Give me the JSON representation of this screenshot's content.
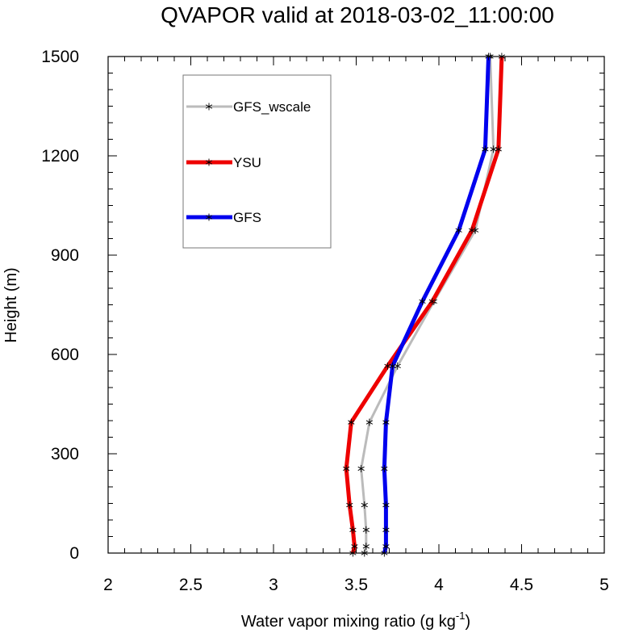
{
  "chart_data": {
    "type": "line",
    "title": "QVAPOR valid at 2018-03-02_11:00:00",
    "xlabel": "Water vapor mixing ratio (g kg",
    "xlabel_exponent": "-1",
    "xlabel_suffix": ")",
    "ylabel": "Height (m)",
    "xlim": [
      2,
      5
    ],
    "ylim": [
      0,
      1500
    ],
    "xticks": [
      "2",
      "2.5",
      "3",
      "3.5",
      "4",
      "4.5",
      "5"
    ],
    "yticks": [
      "0",
      "300",
      "600",
      "900",
      "1200",
      "1500"
    ],
    "grid": false,
    "legend_position": "top-left inside",
    "series": [
      {
        "name": "GFS_wscale",
        "color": "#bbbbbb",
        "marker": "asterisk",
        "points": [
          [
            3.55,
            0
          ],
          [
            3.56,
            20
          ],
          [
            3.56,
            70
          ],
          [
            3.55,
            145
          ],
          [
            3.53,
            255
          ],
          [
            3.58,
            395
          ],
          [
            3.75,
            565
          ],
          [
            3.97,
            760
          ],
          [
            4.22,
            975
          ],
          [
            4.33,
            1220
          ],
          [
            4.31,
            1500
          ]
        ]
      },
      {
        "name": "YSU",
        "color": "#ee0000",
        "marker": "asterisk",
        "points": [
          [
            3.48,
            0
          ],
          [
            3.49,
            20
          ],
          [
            3.48,
            70
          ],
          [
            3.46,
            145
          ],
          [
            3.44,
            255
          ],
          [
            3.47,
            395
          ],
          [
            3.69,
            565
          ],
          [
            3.96,
            760
          ],
          [
            4.2,
            975
          ],
          [
            4.36,
            1220
          ],
          [
            4.38,
            1500
          ]
        ]
      },
      {
        "name": "GFS",
        "color": "#0000ee",
        "marker": "asterisk",
        "points": [
          [
            3.67,
            0
          ],
          [
            3.68,
            20
          ],
          [
            3.68,
            70
          ],
          [
            3.68,
            145
          ],
          [
            3.67,
            255
          ],
          [
            3.68,
            395
          ],
          [
            3.72,
            565
          ],
          [
            3.9,
            760
          ],
          [
            4.12,
            975
          ],
          [
            4.28,
            1220
          ],
          [
            4.3,
            1500
          ]
        ]
      }
    ]
  }
}
